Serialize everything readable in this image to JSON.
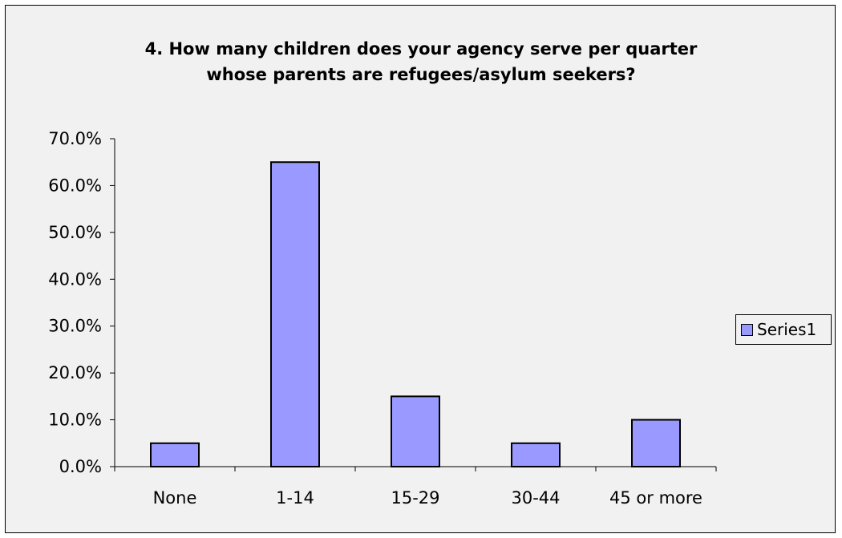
{
  "chart_data": {
    "type": "bar",
    "title_lines": [
      "4. How many children does your agency serve per quarter",
      "whose parents are refugees/asylum seekers?"
    ],
    "categories": [
      "None",
      "1-14",
      "15-29",
      "30-44",
      "45 or more"
    ],
    "series": [
      {
        "name": "Series1",
        "values": [
          5.0,
          65.0,
          15.0,
          5.0,
          10.0
        ]
      }
    ],
    "yticks": [
      "0.0%",
      "10.0%",
      "20.0%",
      "30.0%",
      "40.0%",
      "50.0%",
      "60.0%",
      "70.0%"
    ],
    "ylim": [
      0,
      70
    ],
    "y_unit": "%",
    "legend_position": "right",
    "grid": false,
    "colors": {
      "bar_fill": "#9999ff",
      "bar_stroke": "#000000",
      "background": "#f1f1f1"
    }
  }
}
